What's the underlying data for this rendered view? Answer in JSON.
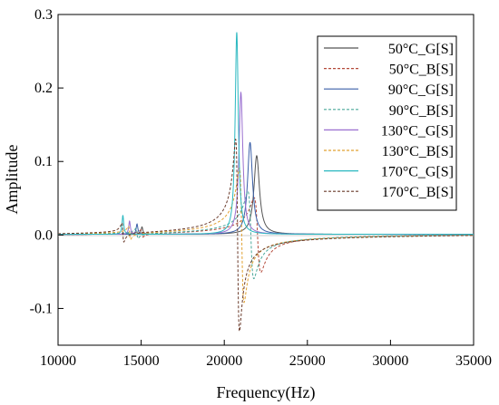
{
  "chart_data": {
    "type": "line",
    "title": "",
    "xlabel": "Frequency(Hz)",
    "ylabel": "Amplitude",
    "xlim": [
      10000,
      35000
    ],
    "ylim": [
      -0.15,
      0.3
    ],
    "x_ticks": [
      10000,
      15000,
      20000,
      25000,
      30000,
      35000
    ],
    "y_ticks": [
      -0.1,
      0.0,
      0.1,
      0.2,
      0.3
    ],
    "y_tick_labels": [
      "-0.1",
      "0.0",
      "0.1",
      "0.2",
      "0.3"
    ],
    "grid": false,
    "legend": "top-right",
    "series": [
      {
        "name": "50°C_G[S]",
        "kind": "G",
        "color": "#555555",
        "dash": "solid",
        "f0": 21950,
        "peak": 0.107,
        "q": 55,
        "sub_f0": 15050,
        "sub_amp": 0.01
      },
      {
        "name": "50°C_B[S]",
        "kind": "B",
        "color": "#b44a3a",
        "dash": "dash",
        "f0": 22000,
        "peak": 0.107,
        "q": 55,
        "sub_f0": 15050,
        "sub_amp": 0.01
      },
      {
        "name": "90°C_G[S]",
        "kind": "G",
        "color": "#3a5fa8",
        "dash": "solid",
        "f0": 21550,
        "peak": 0.125,
        "q": 60,
        "sub_f0": 14750,
        "sub_amp": 0.014
      },
      {
        "name": "90°C_B[S]",
        "kind": "B",
        "color": "#4aa89a",
        "dash": "dash",
        "f0": 21600,
        "peak": 0.125,
        "q": 60,
        "sub_f0": 14750,
        "sub_amp": 0.014
      },
      {
        "name": "130°C_G[S]",
        "kind": "G",
        "color": "#9a6fd0",
        "dash": "solid",
        "f0": 21000,
        "peak": 0.193,
        "q": 75,
        "sub_f0": 14300,
        "sub_amp": 0.018
      },
      {
        "name": "130°C_B[S]",
        "kind": "B",
        "color": "#e0a030",
        "dash": "dash",
        "f0": 21050,
        "peak": 0.193,
        "q": 75,
        "sub_f0": 14300,
        "sub_amp": 0.018
      },
      {
        "name": "170°C_G[S]",
        "kind": "G",
        "color": "#2ab8c0",
        "dash": "solid",
        "f0": 20750,
        "peak": 0.275,
        "q": 90,
        "sub_f0": 13900,
        "sub_amp": 0.026
      },
      {
        "name": "170°C_B[S]",
        "kind": "B",
        "color": "#6a3a2a",
        "dash": "dash",
        "f0": 20800,
        "peak": 0.275,
        "q": 90,
        "sub_f0": 13900,
        "sub_amp": 0.026
      }
    ]
  }
}
